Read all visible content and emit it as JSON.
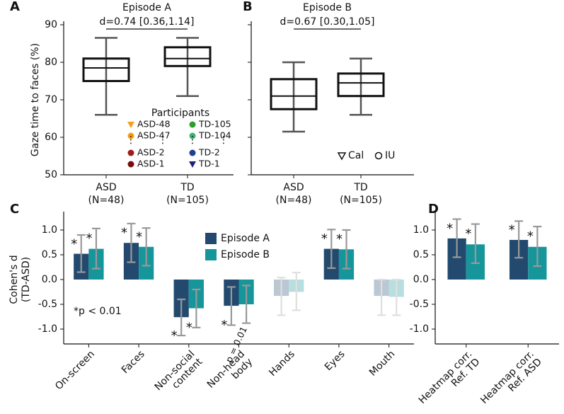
{
  "chart_data": [
    {
      "type": "box",
      "panel": "A",
      "title": "Episode A",
      "annotation": "d=0.74 [0.36,1.14]",
      "ylabel": "Gaze time to faces (%)",
      "categories": [
        "ASD",
        "TD"
      ],
      "category_notes": [
        "(N=48)",
        "(N=105)"
      ],
      "whisker_low": [
        66,
        71
      ],
      "q1": [
        75,
        79
      ],
      "median": [
        78.5,
        81
      ],
      "q3": [
        81,
        84
      ],
      "whisker_high": [
        86.5,
        86.5
      ],
      "ylim": [
        50,
        90
      ],
      "yticks": [
        50,
        60,
        70,
        80,
        90
      ],
      "tick_labels": true,
      "legend": {
        "title": "Participants",
        "entries": [
          {
            "label": "ASD-48",
            "color": "#f5a01a",
            "marker": "triangle"
          },
          {
            "label": "ASD-47",
            "color": "#f39c12",
            "marker": "circle"
          },
          {
            "label": "ASD-2",
            "color": "#a01c1c",
            "marker": "circle"
          },
          {
            "label": "ASD-1",
            "color": "#7a0c0c",
            "marker": "circle"
          },
          {
            "label": "TD-105",
            "color": "#2ca02c",
            "marker": "circle"
          },
          {
            "label": "TD-104",
            "color": "#3cb371",
            "marker": "circle"
          },
          {
            "label": "TD-2",
            "color": "#1f3f8f",
            "marker": "circle"
          },
          {
            "label": "TD-1",
            "color": "#1a237e",
            "marker": "triangle"
          }
        ]
      }
    },
    {
      "type": "box",
      "panel": "B",
      "title": "Episode B",
      "annotation": "d=0.67 [0.30,1.05]",
      "categories": [
        "ASD",
        "TD"
      ],
      "category_notes": [
        "(N=48)",
        "(N=105)"
      ],
      "whisker_low": [
        61.5,
        66
      ],
      "q1": [
        67.5,
        71
      ],
      "median": [
        71,
        74.5
      ],
      "q3": [
        75.5,
        77
      ],
      "whisker_high": [
        80,
        81
      ],
      "ylim": [
        50,
        90
      ],
      "yticks": [
        50,
        60,
        70,
        80,
        90
      ],
      "tick_labels": false,
      "legend": {
        "entries": [
          {
            "label": "Cal",
            "color": "#111111",
            "marker": "triangle-open"
          },
          {
            "label": "IU",
            "color": "#111111",
            "marker": "circle-open"
          }
        ]
      }
    },
    {
      "type": "bar",
      "panel": "C",
      "ylabel": [
        "Cohen's d",
        "(TD-ASD)"
      ],
      "note": "*p < 0.01",
      "categories": [
        [
          "On-screen"
        ],
        [
          "Faces"
        ],
        [
          "Non-social",
          "content"
        ],
        [
          "Non-head",
          "body"
        ],
        [
          "Hands"
        ],
        [
          "Eyes"
        ],
        [
          "Mouth"
        ]
      ],
      "series": [
        {
          "name": "Episode A",
          "color": "#234a6e",
          "values": [
            0.52,
            0.74,
            -0.76,
            -0.53,
            -0.33,
            0.62,
            -0.33
          ],
          "ci_low": [
            0.15,
            0.35,
            -1.13,
            -0.92,
            -0.72,
            0.23,
            -0.72
          ],
          "ci_high": [
            0.9,
            1.13,
            -0.4,
            -0.15,
            0.04,
            1.01,
            0.0
          ],
          "annotations": [
            "*",
            "*",
            "*",
            "*",
            null,
            "*",
            null
          ],
          "faded": [
            false,
            false,
            false,
            false,
            true,
            false,
            true
          ]
        },
        {
          "name": "Episode B",
          "color": "#16969a",
          "values": [
            0.62,
            0.66,
            -0.58,
            -0.5,
            -0.25,
            0.61,
            -0.35
          ],
          "ci_low": [
            0.22,
            0.28,
            -0.97,
            -0.88,
            -0.62,
            0.22,
            -0.72
          ],
          "ci_high": [
            1.03,
            1.04,
            -0.2,
            -0.12,
            0.14,
            1.0,
            0.0
          ],
          "annotations": [
            "*",
            "*",
            "*",
            "p = 0.01",
            null,
            "*",
            null
          ],
          "faded": [
            false,
            false,
            false,
            false,
            true,
            false,
            true
          ]
        }
      ],
      "ylim": [
        -1.3,
        1.3
      ],
      "yticks": [
        {
          "value": -1,
          "label": "-1.0"
        },
        {
          "value": -0.5,
          "label": "-0.5"
        },
        {
          "value": 0,
          "label": "0.0"
        },
        {
          "value": 0.5,
          "label": "0.5"
        },
        {
          "value": 1,
          "label": "1.0"
        }
      ],
      "tick_labels": true
    },
    {
      "type": "bar",
      "panel": "D",
      "categories": [
        [
          "Heatmap corr.",
          "Ref. TD"
        ],
        [
          "Heatmap corr.",
          "Ref. ASD"
        ]
      ],
      "series": [
        {
          "name": "Episode A",
          "color": "#234a6e",
          "values": [
            0.83,
            0.8
          ],
          "ci_low": [
            0.45,
            0.44
          ],
          "ci_high": [
            1.22,
            1.18
          ],
          "annotations": [
            "*",
            "*"
          ],
          "faded": [
            false,
            false
          ]
        },
        {
          "name": "Episode B",
          "color": "#16969a",
          "values": [
            0.71,
            0.66
          ],
          "ci_low": [
            0.33,
            0.27
          ],
          "ci_high": [
            1.12,
            1.07
          ],
          "annotations": [
            "*",
            "*"
          ],
          "faded": [
            false,
            false
          ]
        }
      ],
      "ylim": [
        -1.3,
        1.3
      ],
      "yticks": [
        {
          "value": -1,
          "label": "-1.0"
        },
        {
          "value": -0.5,
          "label": "-0.5"
        },
        {
          "value": 0,
          "label": "0.0"
        },
        {
          "value": 0.5,
          "label": "0.5"
        },
        {
          "value": 1,
          "label": "1.0"
        }
      ],
      "tick_labels": true
    }
  ]
}
